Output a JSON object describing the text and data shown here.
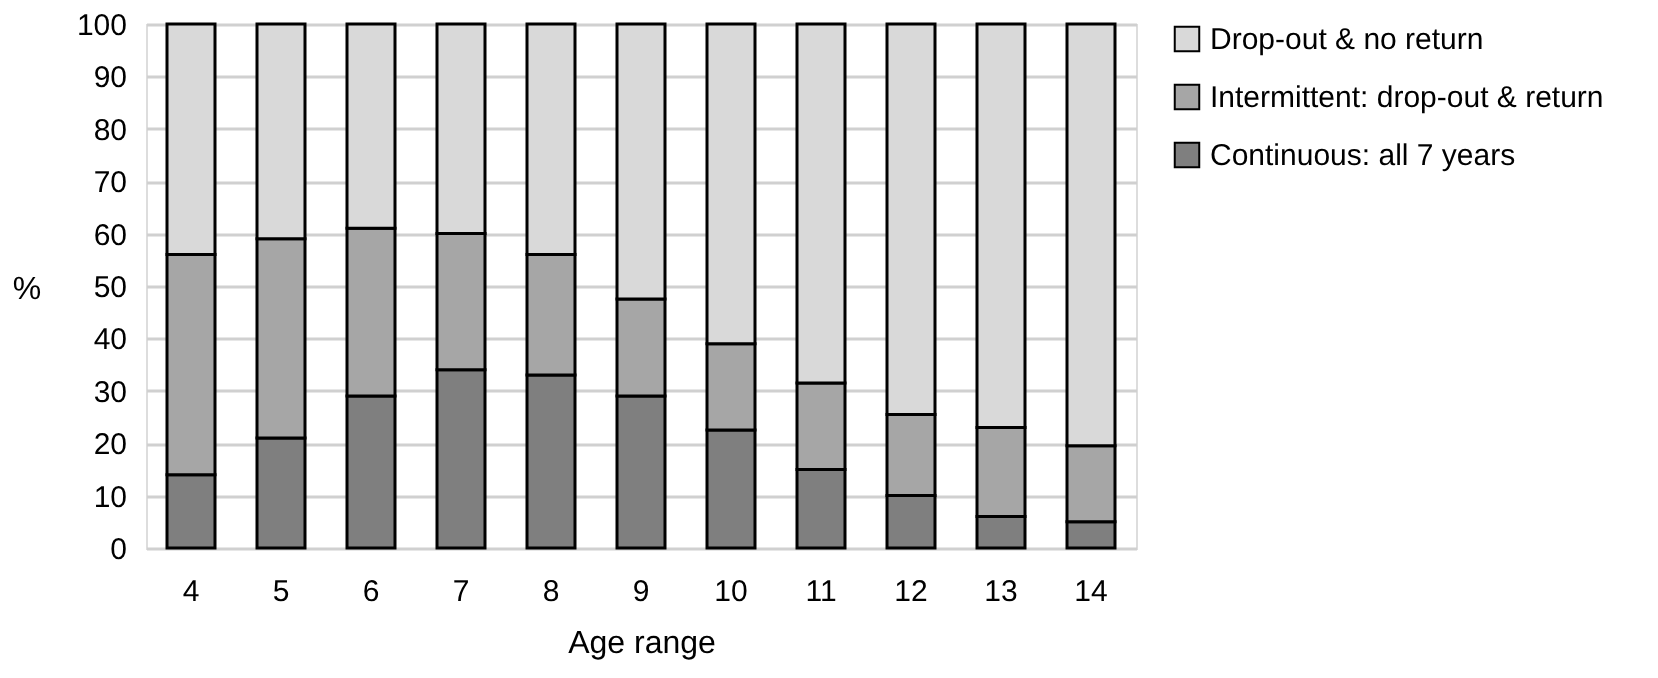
{
  "chart_data": {
    "type": "bar",
    "stacked": true,
    "xlabel": "Age range",
    "ylabel": "%",
    "categories": [
      "4",
      "5",
      "6",
      "7",
      "8",
      "9",
      "10",
      "11",
      "12",
      "13",
      "14"
    ],
    "series": [
      {
        "name": "Continuous: all 7 years",
        "color": "#7f7f7f",
        "values": [
          14,
          21,
          29,
          34,
          33,
          29,
          22.5,
          15,
          10,
          6,
          5
        ]
      },
      {
        "name": "Intermittent: drop-out & return",
        "color": "#a6a6a6",
        "values": [
          42,
          38,
          32,
          26,
          23,
          18.5,
          16.5,
          16.5,
          15.5,
          17,
          14.5
        ]
      },
      {
        "name": "Drop-out & no return",
        "color": "#d9d9d9",
        "values": [
          44,
          41,
          39,
          40,
          44,
          52.5,
          61,
          68.5,
          74.5,
          77,
          80.5
        ]
      }
    ],
    "ylim": [
      0,
      100
    ],
    "yticks": [
      0,
      10,
      20,
      30,
      40,
      50,
      60,
      70,
      80,
      90,
      100
    ],
    "grid": "y",
    "legend": "right"
  }
}
